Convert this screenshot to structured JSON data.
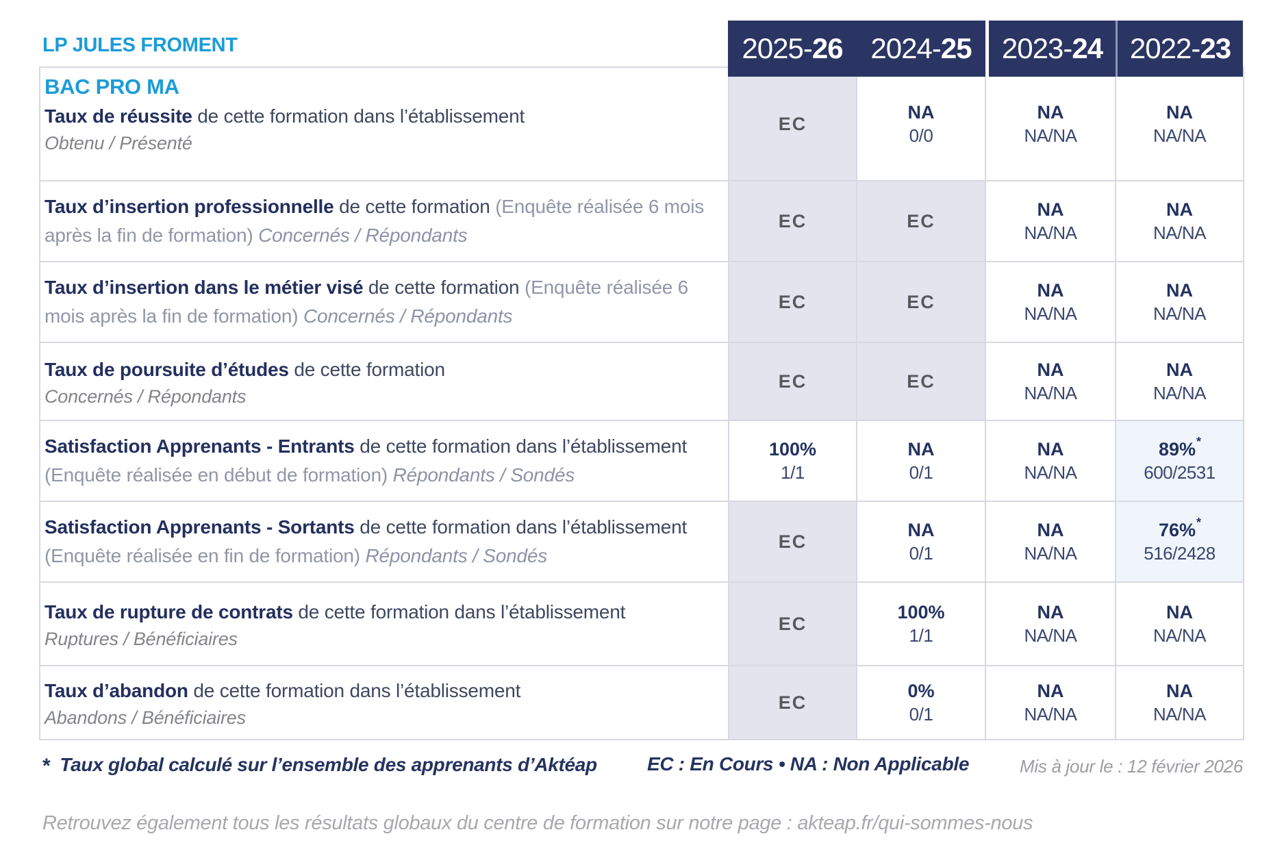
{
  "brand": {
    "name": "LP JULES FROMENT"
  },
  "colors": {
    "accent_blue": "#1b9cd8",
    "navy": "#243261",
    "header_bg": "#2a3563",
    "ec_cell_bg": "#e4e4ee",
    "ec_text": "#58585c",
    "highlight_cell_bg": "#eff5fa",
    "border": "#d8d8e2",
    "muted_gray": "#9195a8"
  },
  "table": {
    "program": "BAC PRO MA",
    "years": [
      {
        "pre": "2025-",
        "bold": "26"
      },
      {
        "pre": "2024-",
        "bold": "25"
      },
      {
        "pre": "2023-",
        "bold": "24"
      },
      {
        "pre": "2022-",
        "bold": "23"
      }
    ],
    "rows": [
      {
        "label": {
          "bold": "Taux de réussite",
          "normal": " de cette formation dans l’établissement",
          "paren": "",
          "italic": "",
          "sub": "Obtenu / Présenté"
        },
        "cells": [
          {
            "main": "EC",
            "sub": "",
            "star": ""
          },
          {
            "main": "NA",
            "sub": "0/0",
            "star": ""
          },
          {
            "main": "NA",
            "sub": "NA/NA",
            "star": ""
          },
          {
            "main": "NA",
            "sub": "NA/NA",
            "star": ""
          }
        ]
      },
      {
        "label": {
          "bold": "Taux d’insertion professionnelle",
          "normal": " de cette formation ",
          "paren": "(Enquête réalisée 6 mois après la fin de formation) ",
          "italic": "Concernés / Répondants",
          "sub": ""
        },
        "cells": [
          {
            "main": "EC",
            "sub": "",
            "star": ""
          },
          {
            "main": "EC",
            "sub": "",
            "star": ""
          },
          {
            "main": "NA",
            "sub": "NA/NA",
            "star": ""
          },
          {
            "main": "NA",
            "sub": "NA/NA",
            "star": ""
          }
        ]
      },
      {
        "label": {
          "bold": "Taux d’insertion dans le métier visé",
          "normal": " de cette formation ",
          "paren": "(Enquête réalisée 6 mois après la fin de formation) ",
          "italic": "Concernés / Répondants",
          "sub": ""
        },
        "cells": [
          {
            "main": "EC",
            "sub": "",
            "star": ""
          },
          {
            "main": "EC",
            "sub": "",
            "star": ""
          },
          {
            "main": "NA",
            "sub": "NA/NA",
            "star": ""
          },
          {
            "main": "NA",
            "sub": "NA/NA",
            "star": ""
          }
        ]
      },
      {
        "label": {
          "bold": "Taux de poursuite d’études",
          "normal": " de cette formation",
          "paren": "",
          "italic": "",
          "sub": "Concernés / Répondants"
        },
        "cells": [
          {
            "main": "EC",
            "sub": "",
            "star": ""
          },
          {
            "main": "EC",
            "sub": "",
            "star": ""
          },
          {
            "main": "NA",
            "sub": "NA/NA",
            "star": ""
          },
          {
            "main": "NA",
            "sub": "NA/NA",
            "star": ""
          }
        ]
      },
      {
        "label": {
          "bold": "Satisfaction Apprenants - Entrants",
          "normal": " de cette formation dans l’établissement ",
          "paren": "(Enquête réalisée en début de formation) ",
          "italic": "Répondants / Sondés",
          "sub": ""
        },
        "cells": [
          {
            "main": "100%",
            "sub": "1/1",
            "star": ""
          },
          {
            "main": "NA",
            "sub": "0/1",
            "star": ""
          },
          {
            "main": "NA",
            "sub": "NA/NA",
            "star": ""
          },
          {
            "main": "89%",
            "sub": "600/2531",
            "star": "*"
          }
        ]
      },
      {
        "label": {
          "bold": "Satisfaction Apprenants - Sortants",
          "normal": " de cette formation dans l’établissement ",
          "paren": "(Enquête réalisée en fin de formation) ",
          "italic": "Répondants / Sondés",
          "sub": ""
        },
        "cells": [
          {
            "main": "EC",
            "sub": "",
            "star": ""
          },
          {
            "main": "NA",
            "sub": "0/1",
            "star": ""
          },
          {
            "main": "NA",
            "sub": "NA/NA",
            "star": ""
          },
          {
            "main": "76%",
            "sub": "516/2428",
            "star": "*"
          }
        ]
      },
      {
        "label": {
          "bold": "Taux de rupture de contrats",
          "normal": " de cette formation dans l’établissement",
          "paren": "",
          "italic": "",
          "sub": "Ruptures / Bénéficiaires"
        },
        "cells": [
          {
            "main": "EC",
            "sub": "",
            "star": ""
          },
          {
            "main": "100%",
            "sub": "1/1",
            "star": ""
          },
          {
            "main": "NA",
            "sub": "NA/NA",
            "star": ""
          },
          {
            "main": "NA",
            "sub": "NA/NA",
            "star": ""
          }
        ]
      },
      {
        "label": {
          "bold": "Taux d’abandon",
          "normal": " de cette formation dans l’établissement",
          "paren": "",
          "italic": "",
          "sub": "Abandons / Bénéficiaires"
        },
        "cells": [
          {
            "main": "EC",
            "sub": "",
            "star": ""
          },
          {
            "main": "0%",
            "sub": "0/1",
            "star": ""
          },
          {
            "main": "NA",
            "sub": "NA/NA",
            "star": ""
          },
          {
            "main": "NA",
            "sub": "NA/NA",
            "star": ""
          }
        ]
      }
    ]
  },
  "footer": {
    "star": "*",
    "star_note": "Taux global calculé sur l’ensemble des apprenants d’Aktéap",
    "legend": "EC : En Cours   •   NA : Non Applicable",
    "updated": "Mis à jour le : 12 février 2026",
    "bottom_note": "Retrouvez également tous les résultats globaux du centre de formation sur notre page : akteap.fr/qui-sommes-nous"
  }
}
